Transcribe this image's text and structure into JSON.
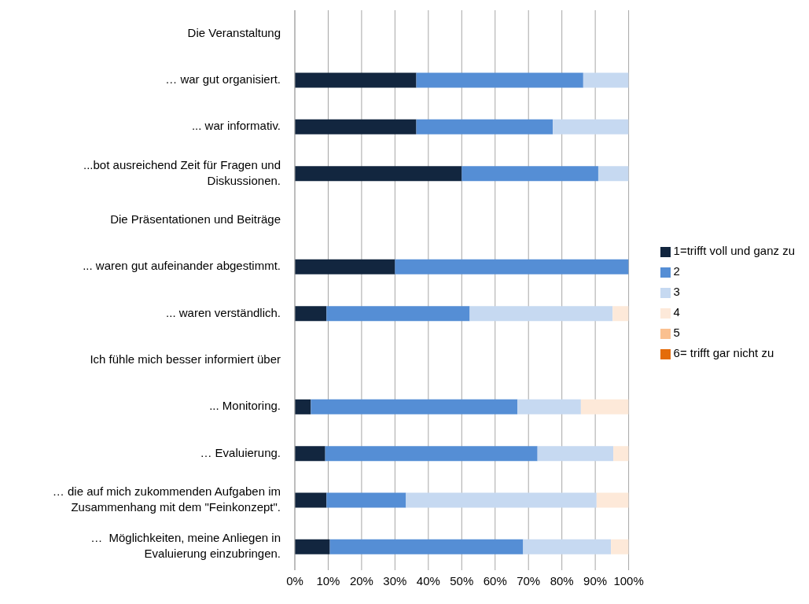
{
  "chart_data": {
    "type": "bar",
    "orientation": "horizontal",
    "stacked": true,
    "categories": [
      "Die Veranstaltung",
      "… war gut organisiert.",
      "... war informativ.",
      "...bot ausreichend Zeit für Fragen und Diskussionen.",
      "Die Präsentationen und Beiträge",
      "... waren gut aufeinander abgestimmt.",
      "... waren verständlich.",
      "Ich fühle mich besser informiert über",
      "... Monitoring.",
      "… Evaluierung.",
      "… die auf mich zukommenden Aufgaben im Zusammenhang mit dem \"Feinkonzept\".",
      "…  Möglichkeiten, meine Anliegen in Evaluierung einzubringen."
    ],
    "series": [
      {
        "name": "1=trifft voll und ganz zu",
        "color": "#12263f",
        "values": [
          null,
          36.4,
          36.4,
          50,
          null,
          30,
          9.5,
          null,
          4.8,
          9.1,
          9.5,
          10.5
        ]
      },
      {
        "name": "2",
        "color": "#558ed5",
        "values": [
          null,
          50,
          40.9,
          40.9,
          null,
          70,
          42.9,
          null,
          61.9,
          63.6,
          23.8,
          57.9
        ]
      },
      {
        "name": "3",
        "color": "#c6d9f1",
        "values": [
          null,
          13.6,
          22.7,
          9.1,
          null,
          0,
          42.8,
          null,
          19,
          22.7,
          57.1,
          26.3
        ]
      },
      {
        "name": "4",
        "color": "#fde9d9",
        "values": [
          null,
          0,
          0,
          0,
          null,
          0,
          4.8,
          null,
          14.3,
          4.6,
          9.6,
          5.3
        ]
      },
      {
        "name": "5",
        "color": "#fac090",
        "values": [
          null,
          0,
          0,
          0,
          null,
          0,
          0,
          null,
          0,
          0,
          0,
          0
        ]
      },
      {
        "name": "6= trifft gar nicht zu",
        "color": "#e46c0a",
        "values": [
          null,
          0,
          0,
          0,
          null,
          0,
          0,
          null,
          0,
          0,
          0,
          0
        ]
      }
    ],
    "xlim": [
      0,
      100
    ],
    "xticks": [
      {
        "value": 0,
        "label": "0%"
      },
      {
        "value": 10,
        "label": "10%"
      },
      {
        "value": 20,
        "label": "20%"
      },
      {
        "value": 30,
        "label": "30%"
      },
      {
        "value": 40,
        "label": "40%"
      },
      {
        "value": 50,
        "label": "50%"
      },
      {
        "value": 60,
        "label": "60%"
      },
      {
        "value": 70,
        "label": "70%"
      },
      {
        "value": 80,
        "label": "80%"
      },
      {
        "value": 90,
        "label": "90%"
      },
      {
        "value": 100,
        "label": "100%"
      }
    ],
    "grid": "x",
    "legend": "right"
  }
}
